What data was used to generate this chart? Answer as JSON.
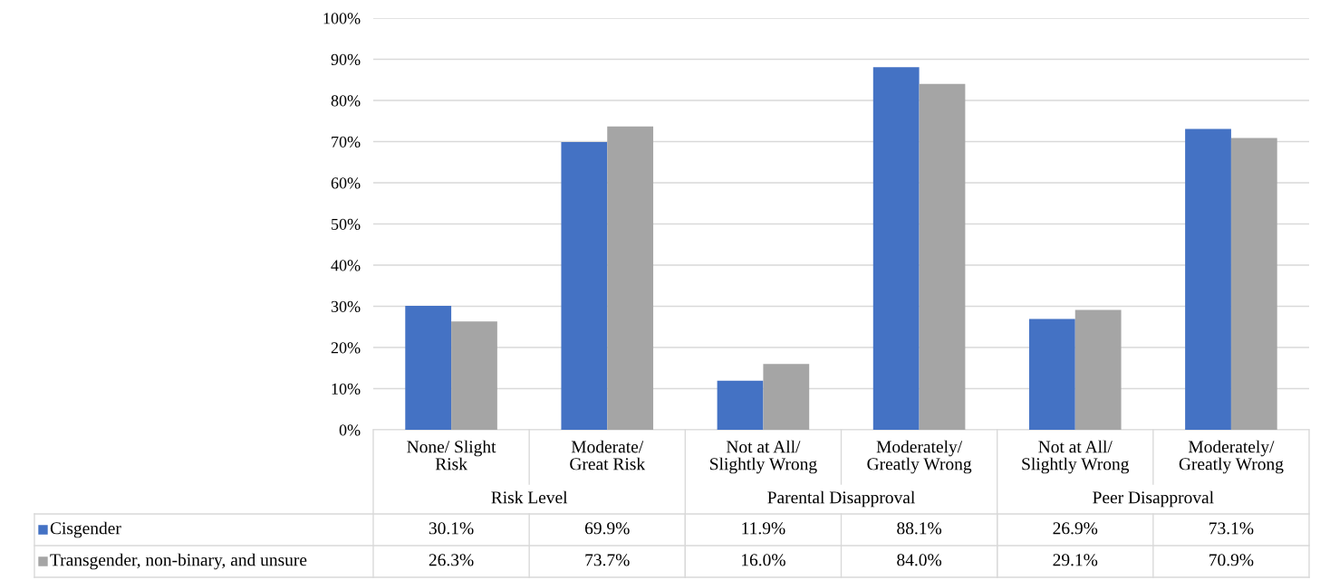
{
  "chart_data": {
    "type": "bar",
    "categories": [
      "None/ Slight\nRisk",
      "Moderate/\nGreat Risk",
      "Not at All/\nSlightly Wrong",
      "Moderately/\nGreatly Wrong",
      "Not at All/\nSlightly Wrong",
      "Moderately/\nGreatly Wrong"
    ],
    "annotations": [
      "Risk Level",
      "Parental Disapproval",
      "Peer Disapproval"
    ],
    "series": [
      {
        "name": "Cisgender",
        "color": "#4472c4",
        "values": [
          30.1,
          69.9,
          11.9,
          88.1,
          26.9,
          73.1
        ],
        "value_labels": [
          "30.1%",
          "69.9%",
          "11.9%",
          "88.1%",
          "26.9%",
          "73.1%"
        ]
      },
      {
        "name": "Transgender, non-binary, and unsure",
        "color": "#a5a5a5",
        "values": [
          26.3,
          73.7,
          16.0,
          84.0,
          29.1,
          70.9
        ],
        "value_labels": [
          "26.3%",
          "73.7%",
          "16.0%",
          "84.0%",
          "29.1%",
          "70.9%"
        ]
      }
    ],
    "ylim": [
      0,
      100
    ],
    "yticks": [
      {
        "value": 0,
        "label": "0%"
      },
      {
        "value": 10,
        "label": "10%"
      },
      {
        "value": 20,
        "label": "20%"
      },
      {
        "value": 30,
        "label": "30%"
      },
      {
        "value": 40,
        "label": "40%"
      },
      {
        "value": 50,
        "label": "50%"
      },
      {
        "value": 60,
        "label": "60%"
      },
      {
        "value": 70,
        "label": "70%"
      },
      {
        "value": 80,
        "label": "80%"
      },
      {
        "value": 90,
        "label": "90%"
      },
      {
        "value": 100,
        "label": "100%"
      }
    ],
    "grid": "y",
    "legend": "bottom left"
  }
}
